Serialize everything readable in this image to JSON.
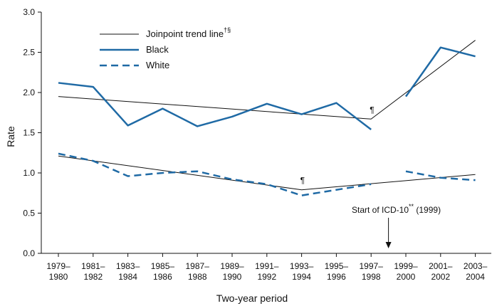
{
  "colors": {
    "black_series": "#1f6aa5",
    "white_series": "#1f6aa5",
    "trend": "#111111",
    "axis": "#111111"
  },
  "chart_data": {
    "type": "line",
    "title": "",
    "xlabel": "Two-year period",
    "ylabel": "Rate",
    "ylim": [
      0.0,
      3.0
    ],
    "yticks": [
      "0.0",
      "0.5",
      "1.0",
      "1.5",
      "2.0",
      "2.5",
      "3.0"
    ],
    "categories": [
      [
        "1979–",
        "1980"
      ],
      [
        "1981–",
        "1982"
      ],
      [
        "1983–",
        "1984"
      ],
      [
        "1985–",
        "1986"
      ],
      [
        "1987–",
        "1988"
      ],
      [
        "1989–",
        "1990"
      ],
      [
        "1991–",
        "1992"
      ],
      [
        "1993–",
        "1994"
      ],
      [
        "1995–",
        "1996"
      ],
      [
        "1997–",
        "1998"
      ],
      [
        "1999–",
        "2000"
      ],
      [
        "2001–",
        "2002"
      ],
      [
        "2003–",
        "2004"
      ]
    ],
    "legend": {
      "trend": {
        "label": "Joinpoint trend line",
        "sup": "†§"
      },
      "black": {
        "label": "Black"
      },
      "white": {
        "label": "White"
      }
    },
    "series": [
      {
        "name": "Black",
        "style": "solid",
        "values": [
          2.12,
          2.07,
          1.59,
          1.8,
          1.58,
          1.7,
          1.86,
          1.73,
          1.87,
          1.54,
          1.95,
          2.56,
          2.45
        ],
        "gap_after_index": 9
      },
      {
        "name": "White",
        "style": "dashed",
        "values": [
          1.24,
          1.15,
          0.96,
          1.0,
          1.02,
          0.92,
          0.86,
          0.72,
          0.79,
          0.86,
          1.02,
          0.94,
          0.91
        ],
        "gap_after_index": 9
      }
    ],
    "trend_lines": [
      {
        "points": [
          [
            0,
            1.95
          ],
          [
            9,
            1.67
          ],
          [
            12,
            2.65
          ]
        ]
      },
      {
        "points": [
          [
            0,
            1.21
          ],
          [
            7,
            0.79
          ],
          [
            12,
            0.98
          ]
        ]
      }
    ],
    "annotations": {
      "pilcrow": "¶",
      "pilcrow_black_at": [
        9,
        1.75
      ],
      "pilcrow_white_at": [
        7,
        0.87
      ],
      "icd_text": "Start of ICD-10",
      "icd_sup": "**",
      "icd_year": " (1999)",
      "icd_arrow_between": [
        9,
        10
      ]
    }
  }
}
